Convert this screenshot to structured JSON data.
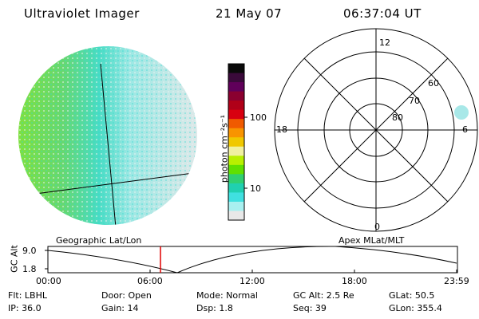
{
  "header": {
    "instrument": "Ultraviolet Imager",
    "date": "21 May 07",
    "time": "06:37:04 UT"
  },
  "colorbar": {
    "label": "photon cm⁻²s⁻¹",
    "ticks": [
      "100",
      "10"
    ],
    "colors": [
      "#0a0a0a",
      "#3a0a3a",
      "#60005a",
      "#8a0030",
      "#b00018",
      "#d80010",
      "#f05a00",
      "#f89400",
      "#f0c800",
      "#f0f0a0",
      "#b8f000",
      "#60e000",
      "#30d070",
      "#20d0b0",
      "#40e0e0",
      "#a8f0f0",
      "#e8e8e8"
    ]
  },
  "polar": {
    "mlt_labels": {
      "top": "12",
      "left": "18",
      "right": "6",
      "bottom": "0"
    },
    "lat_labels": [
      "60",
      "70",
      "80"
    ]
  },
  "plot": {
    "left_title": "Geographic Lat/Lon",
    "right_title": "Apex MLat/MLT",
    "y_axis_label": "GC Alt",
    "y_ticks": [
      "9.0",
      "1.8"
    ],
    "x_ticks": [
      "00:00",
      "06:00",
      "12:00",
      "18:00",
      "23:59"
    ],
    "current_time_color": "#e00000"
  },
  "info": {
    "row1": [
      "Flt: LBHL",
      "Door: Open",
      "Mode: Normal",
      "GC Alt: 2.5 Re",
      "GLat:  50.5"
    ],
    "row2": [
      "IP: 36.0",
      "Gain: 14",
      "Dsp:    1.8",
      "Seq: 39",
      "GLon: 355.4"
    ]
  }
}
